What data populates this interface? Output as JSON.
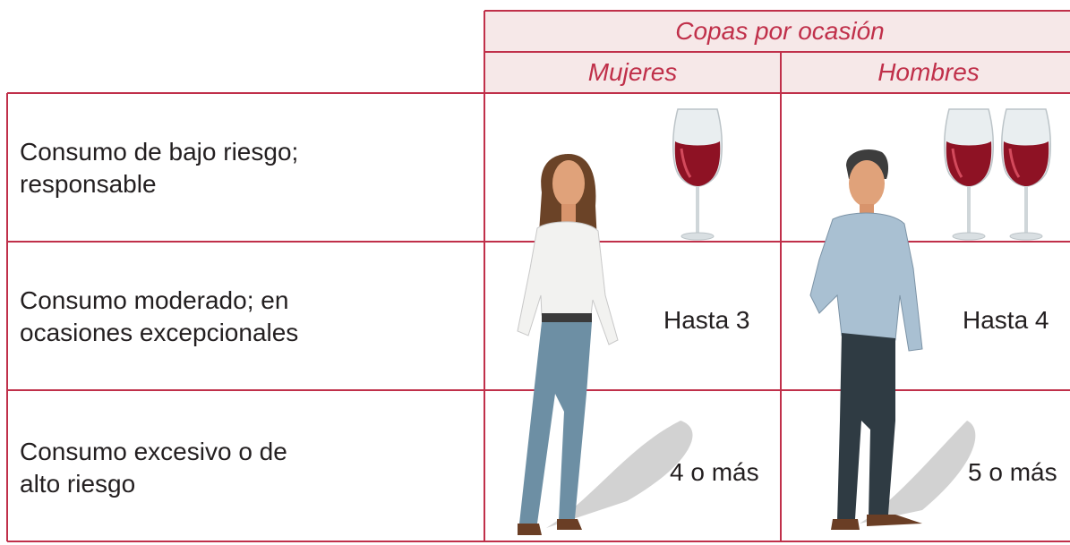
{
  "header": {
    "title": "Copas por ocasión",
    "columns": [
      "Mujeres",
      "Hombres"
    ]
  },
  "table": {
    "rows": [
      {
        "label": "Consumo de bajo riesgo;\nresponsable"
      },
      {
        "label": "Consumo moderado; en\nocasiones excepcionales",
        "mujeres": "Hasta 3",
        "hombres": "Hasta 4"
      },
      {
        "label": "Consumo excesivo o de\nalto riesgo",
        "mujeres": "4 o más",
        "hombres": "5 o más"
      }
    ]
  }
}
